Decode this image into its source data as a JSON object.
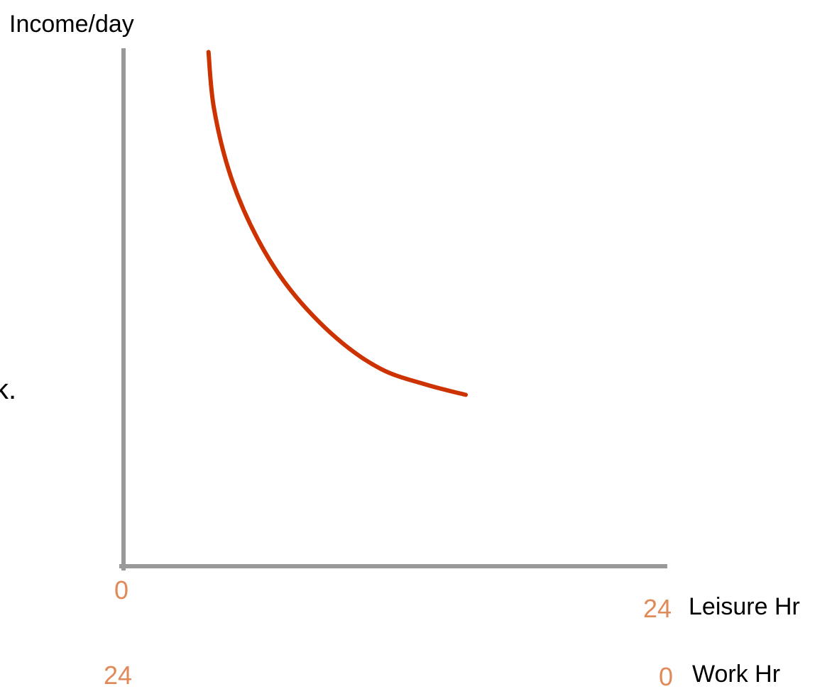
{
  "chart_data": {
    "type": "line",
    "title": "",
    "ylabel": "Income/day",
    "xlabel": "Leisure Hr",
    "secondary_xlabel": "Work Hr",
    "x_ticks": {
      "leisure": {
        "min_label": "0",
        "max_label": "24"
      },
      "work": {
        "min_label": "24",
        "max_label": "0"
      }
    },
    "xlim": [
      0,
      24
    ],
    "grid": false,
    "series": [
      {
        "color": "#cc3300",
        "points": [
          {
            "x": 3.8,
            "y": 0.99
          },
          {
            "x": 4.05,
            "y": 0.88
          },
          {
            "x": 4.8,
            "y": 0.75
          },
          {
            "x": 6.0,
            "y": 0.63
          },
          {
            "x": 7.5,
            "y": 0.53
          },
          {
            "x": 9.5,
            "y": 0.44
          },
          {
            "x": 11.5,
            "y": 0.38
          },
          {
            "x": 13.5,
            "y": 0.35
          },
          {
            "x": 15.3,
            "y": 0.33
          }
        ]
      }
    ]
  },
  "colors": {
    "axis": "#999999",
    "curve": "#cc3300",
    "tick_numbers": "#e08a5a",
    "text": "#000000"
  },
  "stray_text": "k."
}
